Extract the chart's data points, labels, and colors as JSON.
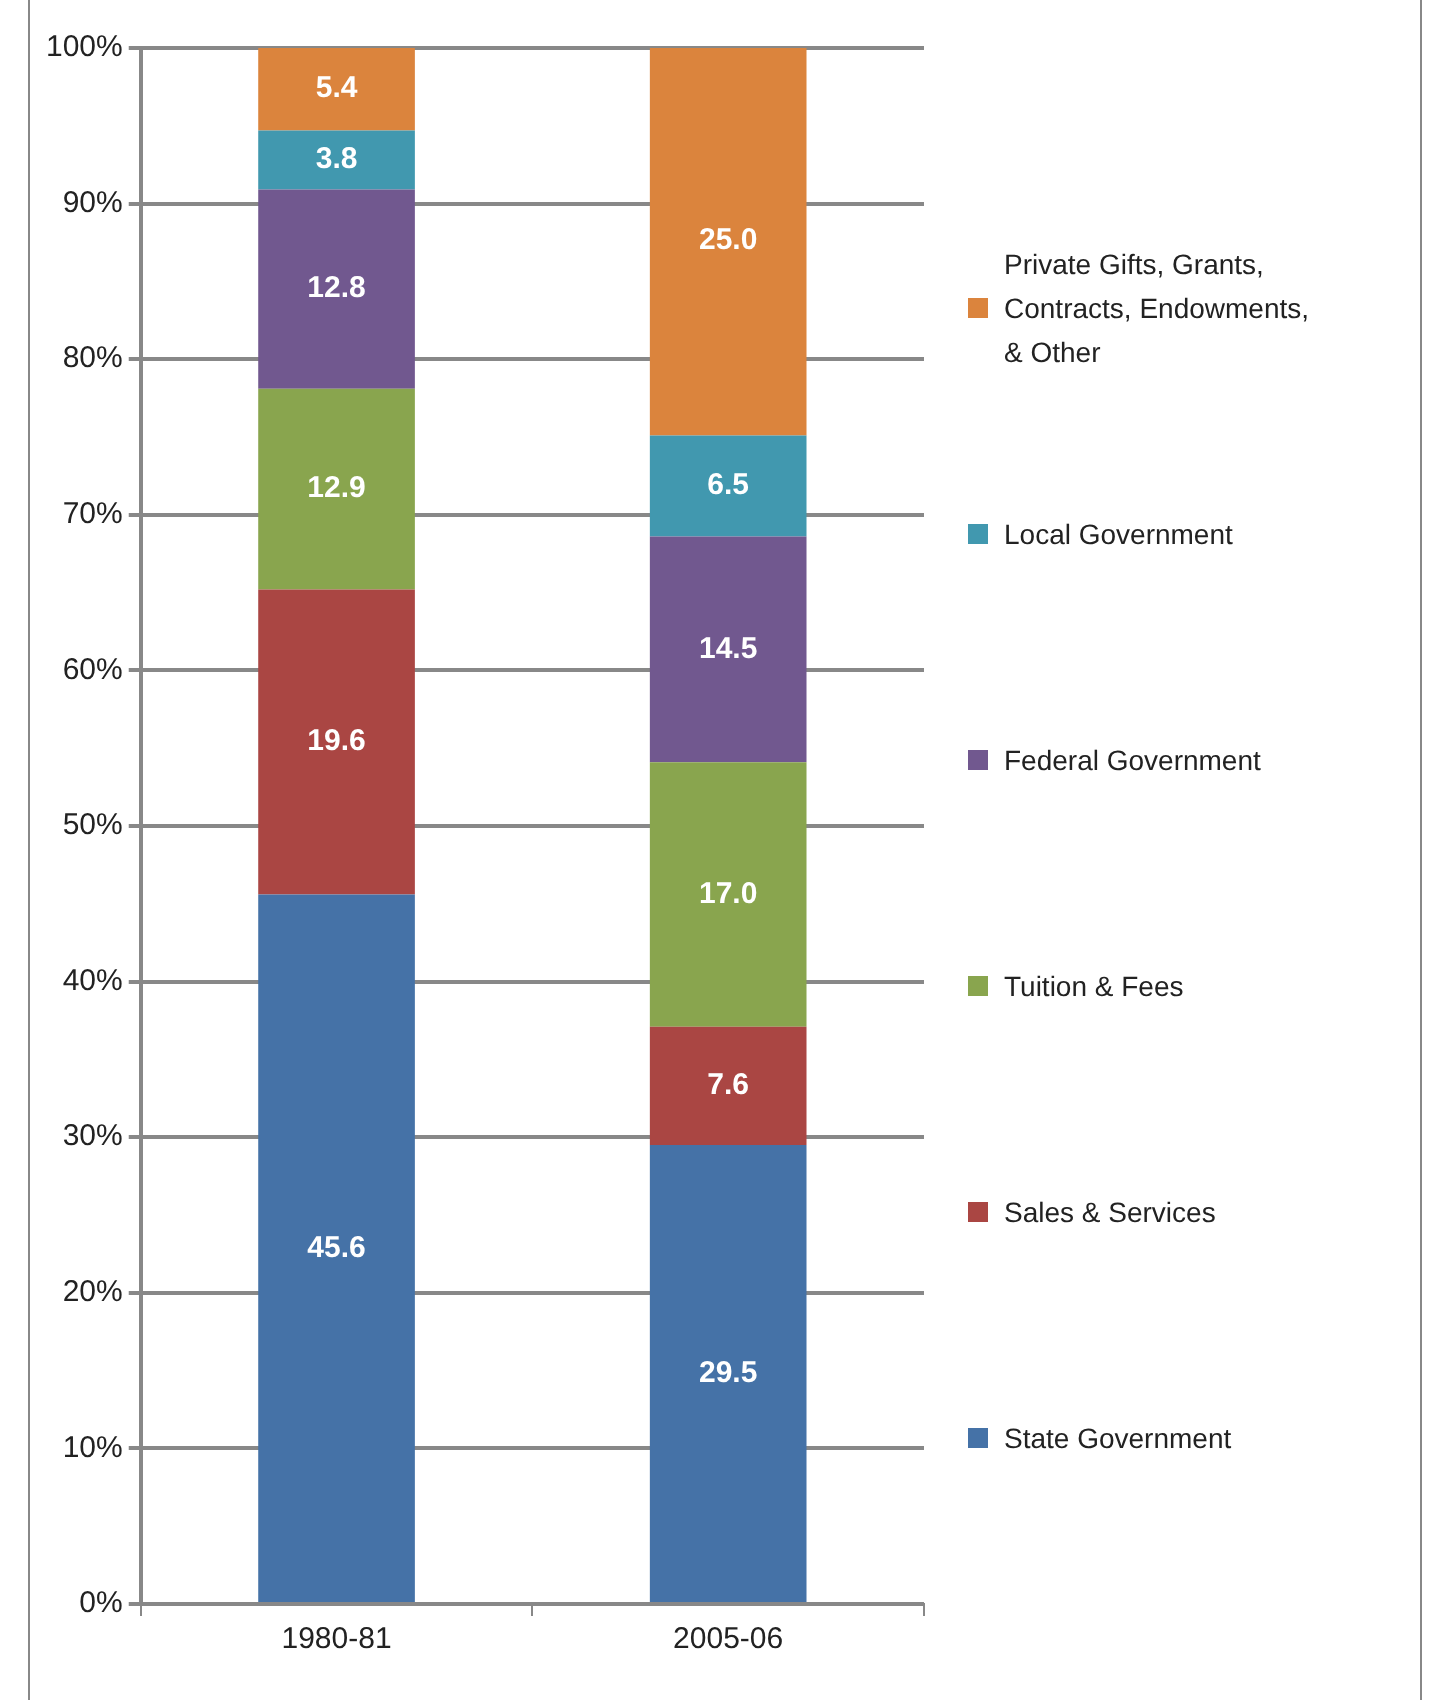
{
  "chart_data": {
    "type": "bar",
    "stacked": true,
    "categories": [
      "1980-81",
      "2005-06"
    ],
    "series": [
      {
        "name": "State Government",
        "color": "#4572a7",
        "values": [
          45.6,
          29.5
        ],
        "value_labels": [
          "45.6",
          "29.5"
        ]
      },
      {
        "name": "Sales & Services",
        "color": "#aa4643",
        "values": [
          19.6,
          7.6
        ],
        "value_labels": [
          "19.6",
          "7.6"
        ]
      },
      {
        "name": "Tuition & Fees",
        "color": "#89a54e",
        "values": [
          12.9,
          17.0
        ],
        "value_labels": [
          "12.9",
          "17.0"
        ]
      },
      {
        "name": "Federal Government",
        "color": "#71588f",
        "values": [
          12.8,
          14.5
        ],
        "value_labels": [
          "12.8",
          "14.5"
        ]
      },
      {
        "name": "Local Government",
        "color": "#4198af",
        "values": [
          3.8,
          6.5
        ],
        "value_labels": [
          "3.8",
          "6.5"
        ]
      },
      {
        "name": "Private Gifts, Grants, Contracts, Endowments, & Other",
        "color": "#db843d",
        "values": [
          5.4,
          25.0
        ],
        "value_labels": [
          "5.4",
          "25.0"
        ]
      }
    ],
    "ylim": [
      0,
      100
    ],
    "yticks": [
      {
        "value": 0,
        "label": "0%"
      },
      {
        "value": 10,
        "label": "10%"
      },
      {
        "value": 20,
        "label": "20%"
      },
      {
        "value": 30,
        "label": "30%"
      },
      {
        "value": 40,
        "label": "40%"
      },
      {
        "value": 50,
        "label": "50%"
      },
      {
        "value": 60,
        "label": "60%"
      },
      {
        "value": 70,
        "label": "70%"
      },
      {
        "value": 80,
        "label": "80%"
      },
      {
        "value": 90,
        "label": "90%"
      },
      {
        "value": 100,
        "label": "100%"
      }
    ],
    "grid": "y",
    "legend": "right"
  }
}
